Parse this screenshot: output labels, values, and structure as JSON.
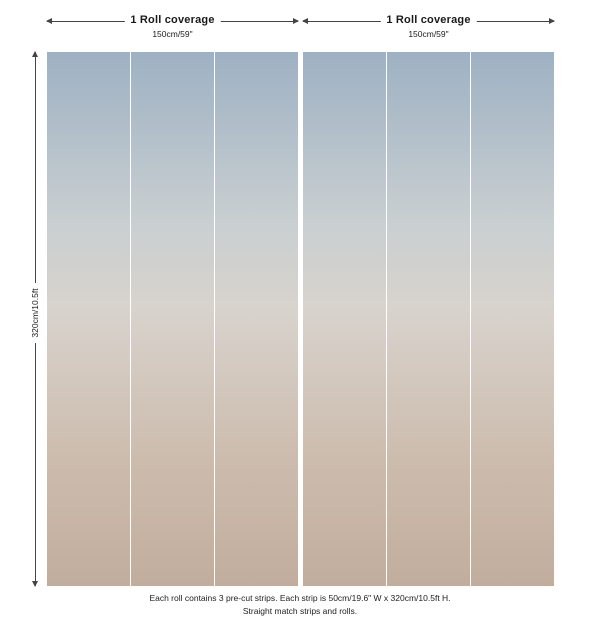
{
  "rolls": [
    {
      "coverage_label": "1 Roll coverage",
      "width_label": "150cm/59\"",
      "strips": 3
    },
    {
      "coverage_label": "1 Roll coverage",
      "width_label": "150cm/59\"",
      "strips": 3
    }
  ],
  "height_label": "320cm/10.5ft",
  "footer": {
    "line1": "Each roll contains 3 pre-cut strips.  Each strip is 50cm/19.6\" W x 320cm/10.5ft H.",
    "line2": "Straight match strips and rolls."
  },
  "gradient_colors": {
    "top": "#9eb1c3",
    "middle": "#d8d3cd",
    "bottom": "#c2ad9d"
  }
}
